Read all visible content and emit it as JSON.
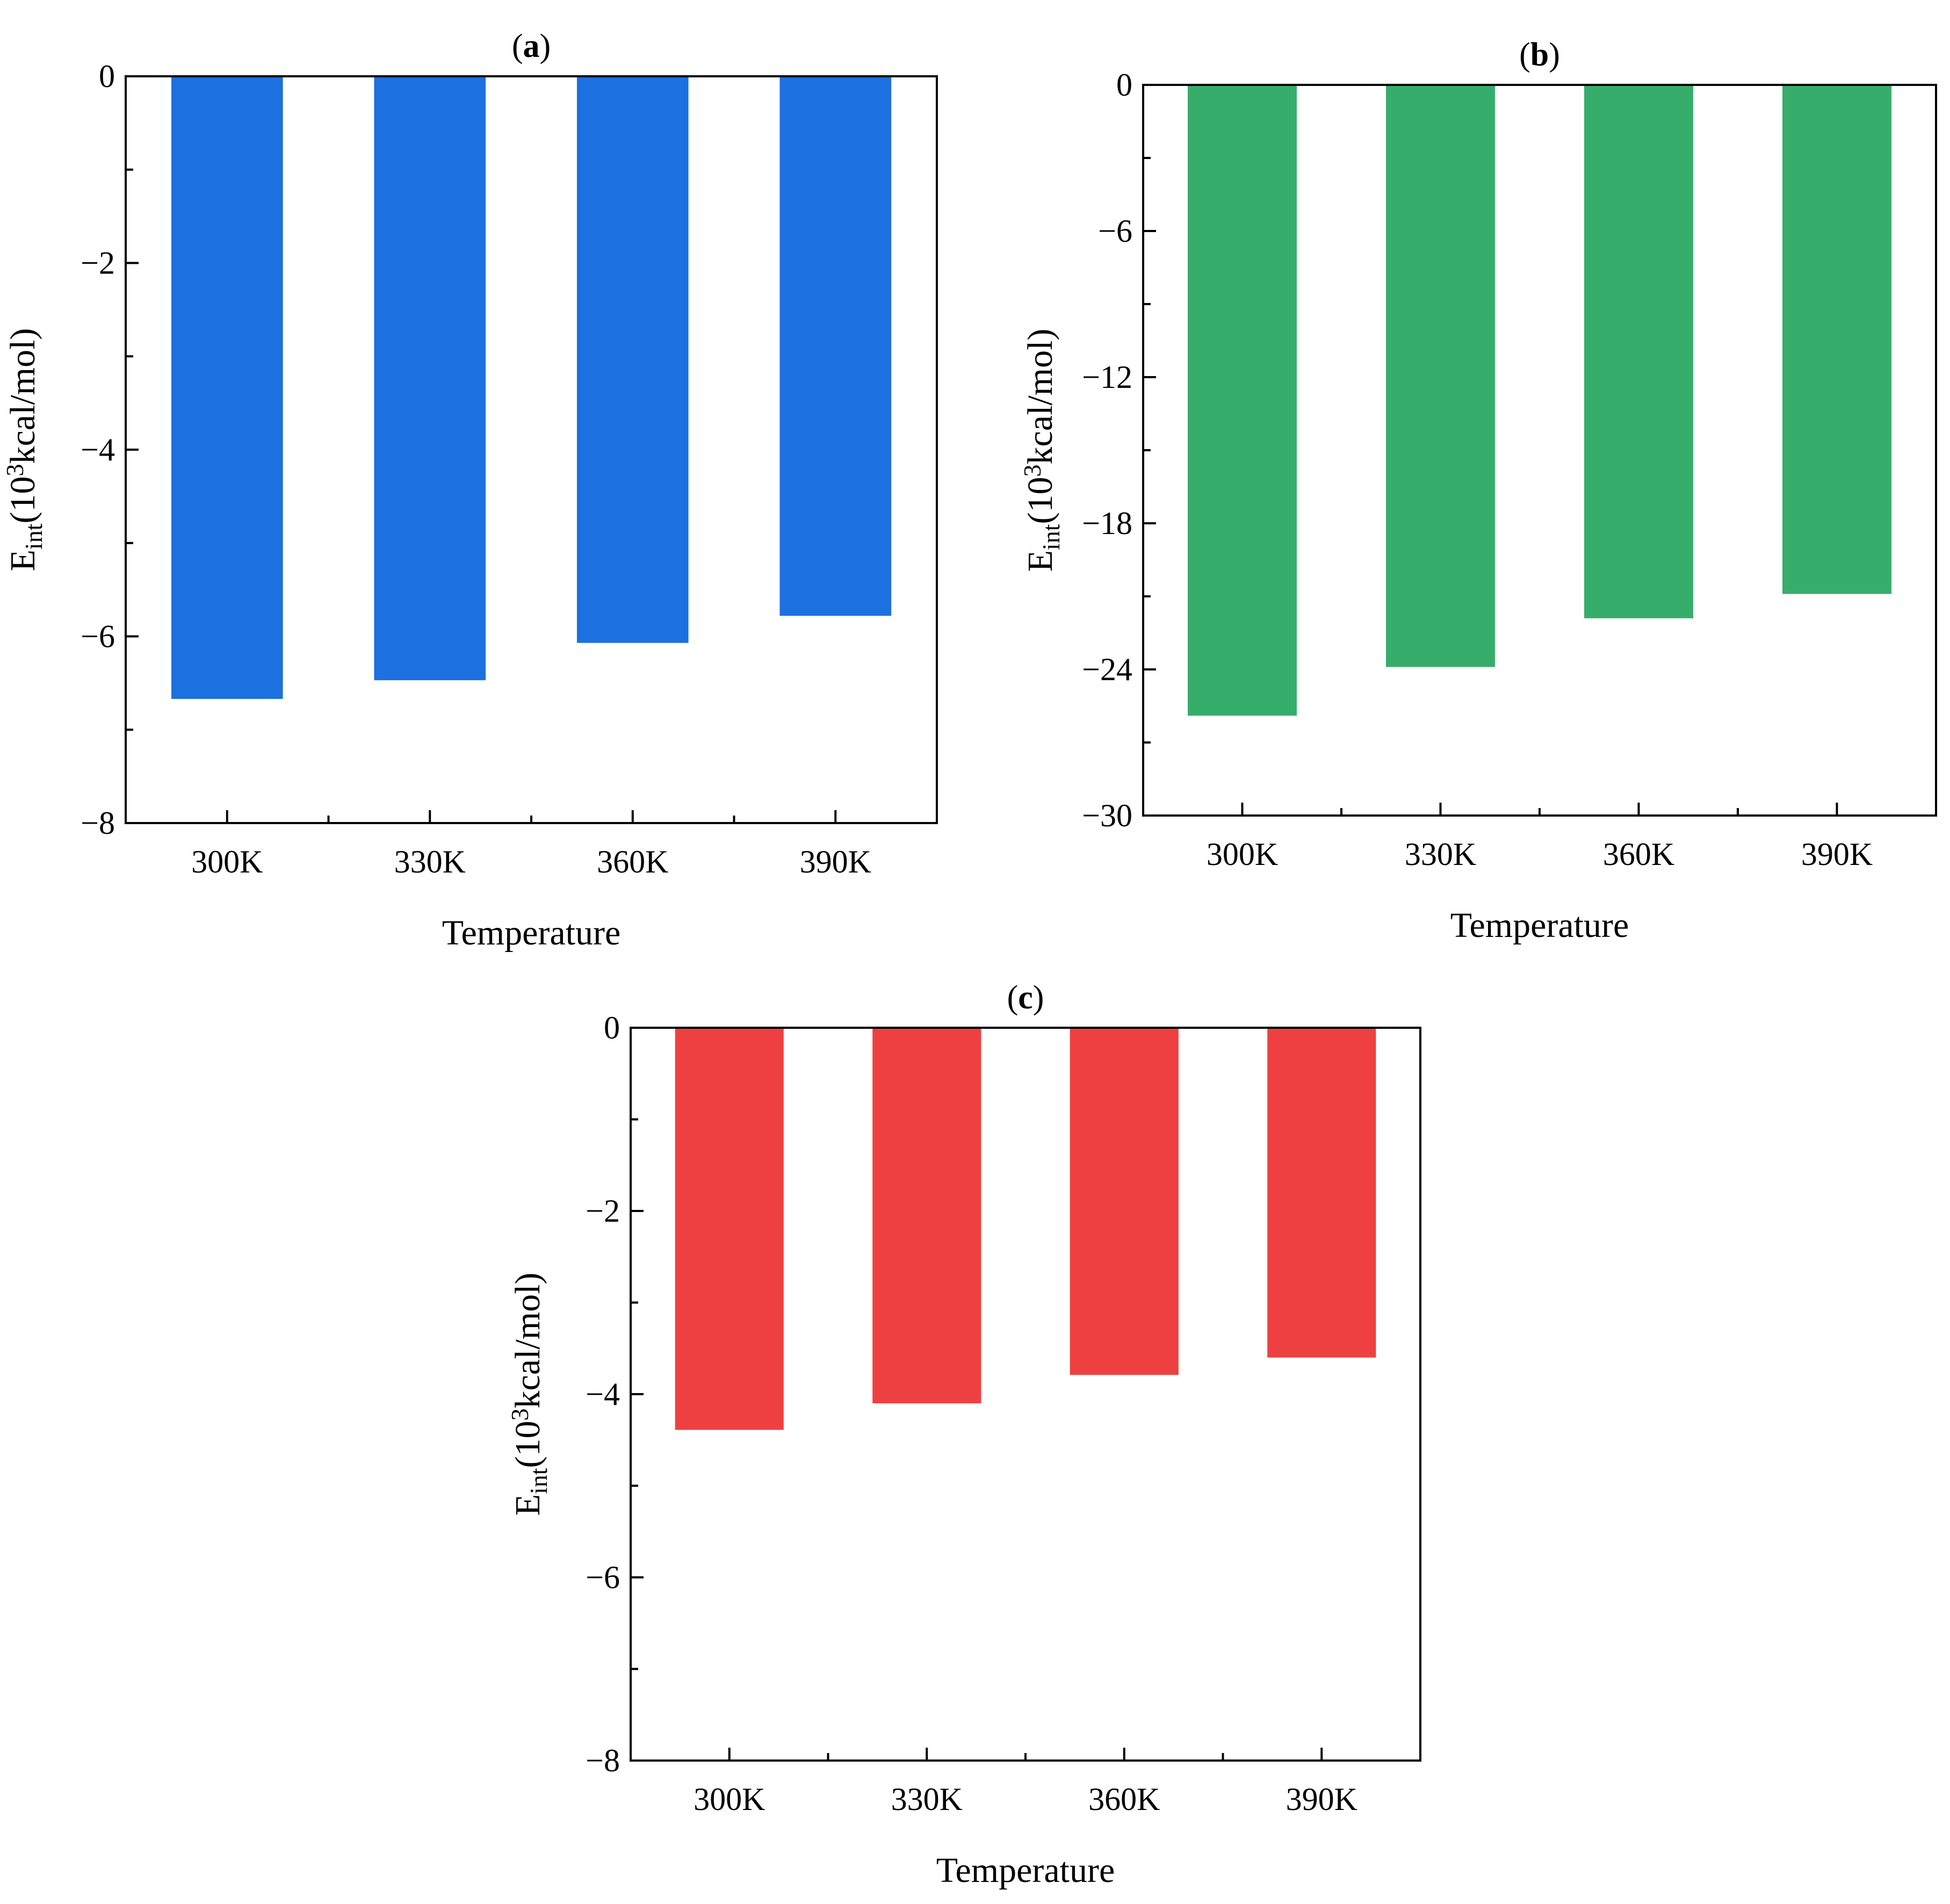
{
  "chart_data": [
    {
      "type": "bar",
      "panel": "a",
      "title": "(a)",
      "xlabel": "Temperature",
      "ylabel_main": "E",
      "ylabel_sub": "int",
      "ylabel_paren": "(10",
      "ylabel_sup": "3",
      "ylabel_rest": "kcal/mol)",
      "categories": [
        "300K",
        "330K",
        "360K",
        "390K"
      ],
      "values": [
        -6.67,
        -6.47,
        -6.07,
        -5.78
      ],
      "ylim": [
        -8,
        0
      ],
      "major_ticks": [
        0,
        -2,
        -4,
        -6,
        -8
      ],
      "tick_labels": [
        "0",
        "−2",
        "−4",
        "−6",
        "−8"
      ],
      "minor_step": 1,
      "color": "#1c70e0"
    },
    {
      "type": "bar",
      "panel": "b",
      "title": "(b)",
      "xlabel": "Temperature",
      "ylabel_main": "E",
      "ylabel_sub": "int",
      "ylabel_paren": "(10",
      "ylabel_sup": "3",
      "ylabel_rest": "kcal/mol)",
      "categories": [
        "300K",
        "330K",
        "360K",
        "390K"
      ],
      "values": [
        -25.9,
        -23.9,
        -21.9,
        -20.9
      ],
      "ylim": [
        -30,
        0
      ],
      "major_ticks": [
        0,
        -6,
        -12,
        -18,
        -24,
        -30
      ],
      "tick_labels": [
        "0",
        "−6",
        "−12",
        "−18",
        "−24",
        "−30"
      ],
      "minor_step": 3,
      "color": "#37ad6c"
    },
    {
      "type": "bar",
      "panel": "c",
      "title": "(c)",
      "xlabel": "Temperature",
      "ylabel_main": "E",
      "ylabel_sub": "int",
      "ylabel_paren": "(10",
      "ylabel_sup": "3",
      "ylabel_rest": "kcal/mol)",
      "categories": [
        "300K",
        "330K",
        "360K",
        "390K"
      ],
      "values": [
        -4.39,
        -4.1,
        -3.79,
        -3.6
      ],
      "ylim": [
        -8,
        0
      ],
      "major_ticks": [
        0,
        -2,
        -4,
        -6,
        -8
      ],
      "tick_labels": [
        "0",
        "−2",
        "−4",
        "−6",
        "−8"
      ],
      "minor_step": 1,
      "color": "#ef4041"
    }
  ]
}
